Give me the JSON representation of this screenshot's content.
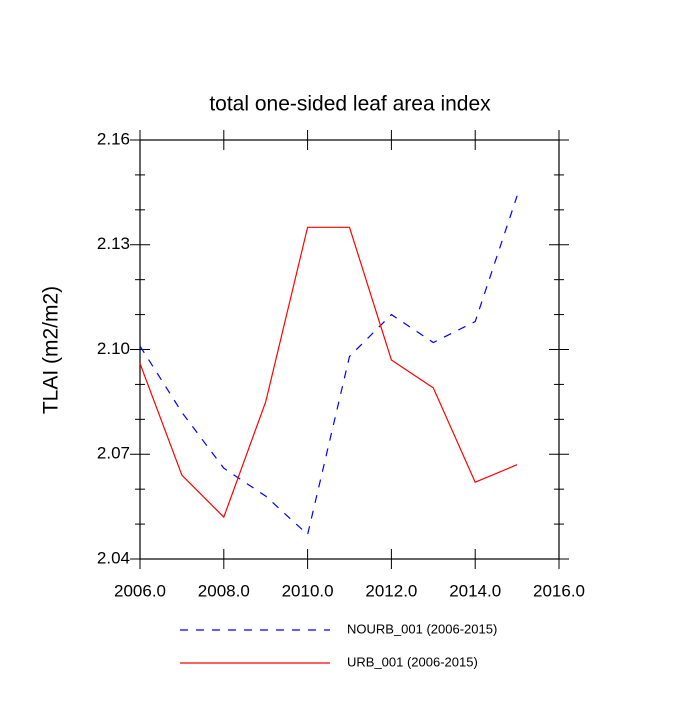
{
  "chart_data": {
    "type": "line",
    "title": "total one-sided leaf area index",
    "y_label": "TLAI  (m2/m2)",
    "x": [
      2006,
      2007,
      2008,
      2009,
      2010,
      2011,
      2012,
      2013,
      2014,
      2015
    ],
    "series": [
      {
        "name": "NOURB_001 (2006-2015)",
        "color": "#0000ff",
        "linestyle": "dashed",
        "values": [
          2.101,
          2.082,
          2.066,
          2.058,
          2.047,
          2.098,
          2.11,
          2.102,
          2.108,
          2.144
        ]
      },
      {
        "name": "URB_001 (2006-2015)",
        "color": "#ff0000",
        "linestyle": "solid",
        "values": [
          2.096,
          2.064,
          2.052,
          2.085,
          2.135,
          2.135,
          2.097,
          2.089,
          2.062,
          2.067
        ]
      }
    ],
    "xlim": [
      2006,
      2016
    ],
    "xticks": [
      {
        "value": 2006,
        "label": "2006.0"
      },
      {
        "value": 2008,
        "label": "2008.0"
      },
      {
        "value": 2010,
        "label": "2010.0"
      },
      {
        "value": 2012,
        "label": "2012.0"
      },
      {
        "value": 2014,
        "label": "2014.0"
      },
      {
        "value": 2016,
        "label": "2016.0"
      }
    ],
    "ylim": [
      2.04,
      2.16
    ],
    "yticks": [
      2.04,
      2.07,
      {
        "value": 2.1,
        "label": "2.10"
      },
      2.13,
      2.16
    ],
    "yminorticks": [
      2.05,
      2.06,
      2.08,
      2.09,
      2.11,
      2.12,
      2.14,
      2.15
    ],
    "legend": "bottom"
  }
}
